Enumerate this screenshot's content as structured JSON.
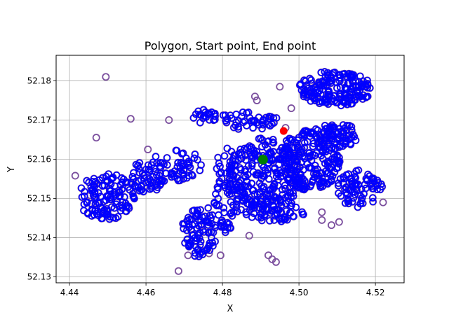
{
  "chart_data": {
    "type": "scatter",
    "title": "Polygon, Start point, End point",
    "xlabel": "X",
    "ylabel": "Y",
    "xlim": [
      4.4365,
      4.5275
    ],
    "ylim": [
      52.1285,
      52.1865
    ],
    "grid": true,
    "x_ticks": [
      {
        "value": 4.44,
        "label": "4.44"
      },
      {
        "value": 4.46,
        "label": "4.46"
      },
      {
        "value": 4.48,
        "label": "4.48"
      },
      {
        "value": 4.5,
        "label": "4.50"
      },
      {
        "value": 4.52,
        "label": "4.52"
      }
    ],
    "y_ticks": [
      {
        "value": 52.13,
        "label": "52.13"
      },
      {
        "value": 52.14,
        "label": "52.14"
      },
      {
        "value": 52.15,
        "label": "52.15"
      },
      {
        "value": 52.16,
        "label": "52.16"
      },
      {
        "value": 52.17,
        "label": "52.17"
      },
      {
        "value": 52.18,
        "label": "52.18"
      }
    ],
    "polygon_color": "#0000ff",
    "polygon_edge_color": "#7b4f9e",
    "start_point": {
      "x": 4.4906,
      "y": 52.1599,
      "color": "#008000"
    },
    "end_point": {
      "x": 4.496,
      "y": 52.1672,
      "color": "#ff0000"
    },
    "clusters": [
      {
        "cx": 4.4495,
        "cy": 52.1505,
        "rx": 0.0075,
        "ry": 0.006,
        "n": 130
      },
      {
        "cx": 4.46,
        "cy": 52.1555,
        "rx": 0.005,
        "ry": 0.004,
        "n": 55
      },
      {
        "cx": 4.468,
        "cy": 52.1585,
        "rx": 0.007,
        "ry": 0.004,
        "n": 60
      },
      {
        "cx": 4.474,
        "cy": 52.142,
        "rx": 0.0045,
        "ry": 0.007,
        "n": 90
      },
      {
        "cx": 4.4755,
        "cy": 52.171,
        "rx": 0.0035,
        "ry": 0.002,
        "n": 22
      },
      {
        "cx": 4.481,
        "cy": 52.152,
        "rx": 0.0035,
        "ry": 0.011,
        "n": 85
      },
      {
        "cx": 4.487,
        "cy": 52.17,
        "rx": 0.008,
        "ry": 0.0025,
        "n": 45
      },
      {
        "cx": 4.491,
        "cy": 52.156,
        "rx": 0.0095,
        "ry": 0.0095,
        "n": 260
      },
      {
        "cx": 4.503,
        "cy": 52.16,
        "rx": 0.008,
        "ry": 0.008,
        "n": 200
      },
      {
        "cx": 4.51,
        "cy": 52.166,
        "rx": 0.0055,
        "ry": 0.0035,
        "n": 70
      },
      {
        "cx": 4.5095,
        "cy": 52.178,
        "rx": 0.0095,
        "ry": 0.0045,
        "n": 190
      },
      {
        "cx": 4.516,
        "cy": 52.1525,
        "rx": 0.006,
        "ry": 0.005,
        "n": 80
      },
      {
        "cx": 4.493,
        "cy": 52.147,
        "rx": 0.009,
        "ry": 0.003,
        "n": 60
      }
    ],
    "outliers": [
      [
        4.4495,
        52.181
      ],
      [
        4.456,
        52.1703
      ],
      [
        4.447,
        52.1655
      ],
      [
        4.4415,
        52.1558
      ],
      [
        4.4455,
        52.1508
      ],
      [
        4.4685,
        52.1315
      ],
      [
        4.471,
        52.1355
      ],
      [
        4.4735,
        52.1368
      ],
      [
        4.4765,
        52.136
      ],
      [
        4.4795,
        52.1355
      ],
      [
        4.492,
        52.1355
      ],
      [
        4.493,
        52.1345
      ],
      [
        4.494,
        52.1338
      ],
      [
        4.487,
        52.1405
      ],
      [
        4.495,
        52.1785
      ],
      [
        4.4885,
        52.176
      ],
      [
        4.489,
        52.175
      ],
      [
        4.498,
        52.173
      ],
      [
        4.4965,
        52.168
      ],
      [
        4.506,
        52.1465
      ],
      [
        4.506,
        52.1445
      ],
      [
        4.5085,
        52.1432
      ],
      [
        4.5105,
        52.144
      ],
      [
        4.522,
        52.149
      ],
      [
        4.513,
        52.153
      ],
      [
        4.466,
        52.17
      ],
      [
        4.4605,
        52.1625
      ]
    ],
    "seed": 7
  }
}
